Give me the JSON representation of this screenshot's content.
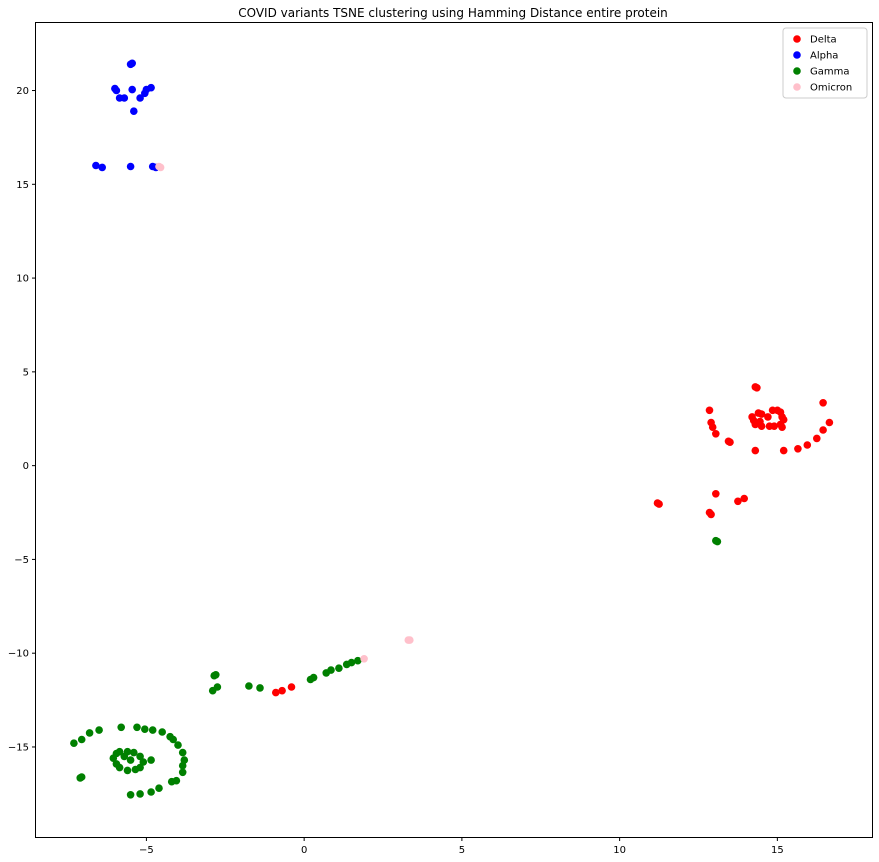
{
  "chart_data": {
    "type": "scatter",
    "title": "COVID variants TSNE clustering using Hamming Distance entire protein",
    "xlabel": "",
    "ylabel": "",
    "xlim": [
      -8.5,
      18
    ],
    "ylim": [
      -19.8,
      23.6
    ],
    "x_ticks": [
      -5,
      0,
      5,
      10,
      15
    ],
    "x_tick_labels": [
      "−5",
      "0",
      "5",
      "10",
      "15"
    ],
    "y_ticks": [
      -15,
      -10,
      -5,
      0,
      5,
      10,
      15,
      20
    ],
    "y_tick_labels": [
      "−15",
      "−10",
      "−5",
      "0",
      "5",
      "10",
      "15",
      "20"
    ],
    "grid": false,
    "legend_position": "top-right",
    "series": [
      {
        "name": "Delta",
        "color": "#ff0000",
        "points": [
          [
            14.3,
            4.2
          ],
          [
            14.35,
            4.15
          ],
          [
            16.45,
            3.35
          ],
          [
            12.85,
            2.95
          ],
          [
            14.4,
            2.8
          ],
          [
            14.5,
            2.75
          ],
          [
            14.85,
            2.95
          ],
          [
            15.0,
            2.95
          ],
          [
            15.1,
            2.85
          ],
          [
            14.2,
            2.6
          ],
          [
            14.25,
            2.4
          ],
          [
            14.45,
            2.35
          ],
          [
            14.5,
            2.1
          ],
          [
            14.3,
            2.2
          ],
          [
            14.7,
            2.6
          ],
          [
            15.15,
            2.6
          ],
          [
            15.2,
            2.45
          ],
          [
            15.1,
            2.2
          ],
          [
            14.9,
            2.1
          ],
          [
            14.75,
            2.1
          ],
          [
            15.15,
            2.05
          ],
          [
            16.65,
            2.3
          ],
          [
            12.9,
            2.3
          ],
          [
            12.95,
            2.05
          ],
          [
            13.05,
            1.7
          ],
          [
            16.45,
            1.9
          ],
          [
            16.25,
            1.45
          ],
          [
            13.45,
            1.3
          ],
          [
            13.5,
            1.25
          ],
          [
            15.95,
            1.1
          ],
          [
            15.65,
            0.9
          ],
          [
            14.3,
            0.8
          ],
          [
            15.2,
            0.8
          ],
          [
            13.05,
            -1.5
          ],
          [
            13.95,
            -1.75
          ],
          [
            13.75,
            -1.9
          ],
          [
            11.2,
            -2.0
          ],
          [
            11.25,
            -2.05
          ],
          [
            12.85,
            -2.5
          ],
          [
            12.9,
            -2.6
          ],
          [
            -0.9,
            -12.1
          ],
          [
            -0.7,
            -12.0
          ],
          [
            -0.4,
            -11.8
          ]
        ]
      },
      {
        "name": "Alpha",
        "color": "#0000ff",
        "points": [
          [
            -5.5,
            21.4
          ],
          [
            -5.45,
            21.45
          ],
          [
            -6.0,
            20.1
          ],
          [
            -5.95,
            20.0
          ],
          [
            -5.45,
            20.05
          ],
          [
            -5.0,
            20.05
          ],
          [
            -4.85,
            20.15
          ],
          [
            -5.05,
            19.85
          ],
          [
            -5.85,
            19.6
          ],
          [
            -5.7,
            19.6
          ],
          [
            -5.2,
            19.6
          ],
          [
            -5.4,
            18.9
          ],
          [
            -6.6,
            16.0
          ],
          [
            -6.4,
            15.9
          ],
          [
            -5.5,
            15.95
          ],
          [
            -4.8,
            15.95
          ],
          [
            -4.7,
            15.9
          ]
        ]
      },
      {
        "name": "Gamma",
        "color": "#008000",
        "points": [
          [
            13.05,
            -4.0
          ],
          [
            13.1,
            -4.05
          ],
          [
            1.7,
            -10.4
          ],
          [
            1.5,
            -10.5
          ],
          [
            1.35,
            -10.6
          ],
          [
            1.1,
            -10.8
          ],
          [
            0.85,
            -10.9
          ],
          [
            0.7,
            -11.05
          ],
          [
            0.3,
            -11.3
          ],
          [
            0.2,
            -11.4
          ],
          [
            -2.85,
            -11.2
          ],
          [
            -2.8,
            -11.15
          ],
          [
            -2.75,
            -11.8
          ],
          [
            -2.9,
            -12.0
          ],
          [
            -1.75,
            -11.75
          ],
          [
            -1.4,
            -11.85
          ],
          [
            -5.8,
            -13.95
          ],
          [
            -5.3,
            -13.95
          ],
          [
            -5.05,
            -14.05
          ],
          [
            -4.8,
            -14.1
          ],
          [
            -4.5,
            -14.2
          ],
          [
            -4.25,
            -14.45
          ],
          [
            -6.5,
            -14.1
          ],
          [
            -6.8,
            -14.25
          ],
          [
            -7.05,
            -14.6
          ],
          [
            -4.15,
            -14.6
          ],
          [
            -7.3,
            -14.8
          ],
          [
            -4.0,
            -14.9
          ],
          [
            -3.85,
            -15.3
          ],
          [
            -3.8,
            -15.7
          ],
          [
            -3.85,
            -16.0
          ],
          [
            -3.85,
            -16.35
          ],
          [
            -4.05,
            -16.8
          ],
          [
            -4.2,
            -16.85
          ],
          [
            -4.6,
            -17.2
          ],
          [
            -4.85,
            -17.4
          ],
          [
            -5.2,
            -17.5
          ],
          [
            -5.5,
            -17.55
          ],
          [
            -7.05,
            -16.6
          ],
          [
            -7.1,
            -16.65
          ],
          [
            -5.95,
            -15.35
          ],
          [
            -5.85,
            -15.25
          ],
          [
            -5.6,
            -15.25
          ],
          [
            -5.4,
            -15.3
          ],
          [
            -5.2,
            -15.5
          ],
          [
            -5.1,
            -15.8
          ],
          [
            -5.2,
            -16.1
          ],
          [
            -5.35,
            -16.2
          ],
          [
            -5.6,
            -16.25
          ],
          [
            -5.85,
            -16.1
          ],
          [
            -5.95,
            -15.9
          ],
          [
            -6.05,
            -15.6
          ],
          [
            -4.85,
            -15.7
          ],
          [
            -5.5,
            -15.7
          ],
          [
            -5.7,
            -15.5
          ]
        ]
      },
      {
        "name": "Omicron",
        "color": "#ffc0cb",
        "points": [
          [
            -4.6,
            15.95
          ],
          [
            -4.55,
            15.9
          ],
          [
            3.3,
            -9.3
          ],
          [
            3.35,
            -9.3
          ],
          [
            1.9,
            -10.3
          ]
        ]
      }
    ]
  }
}
